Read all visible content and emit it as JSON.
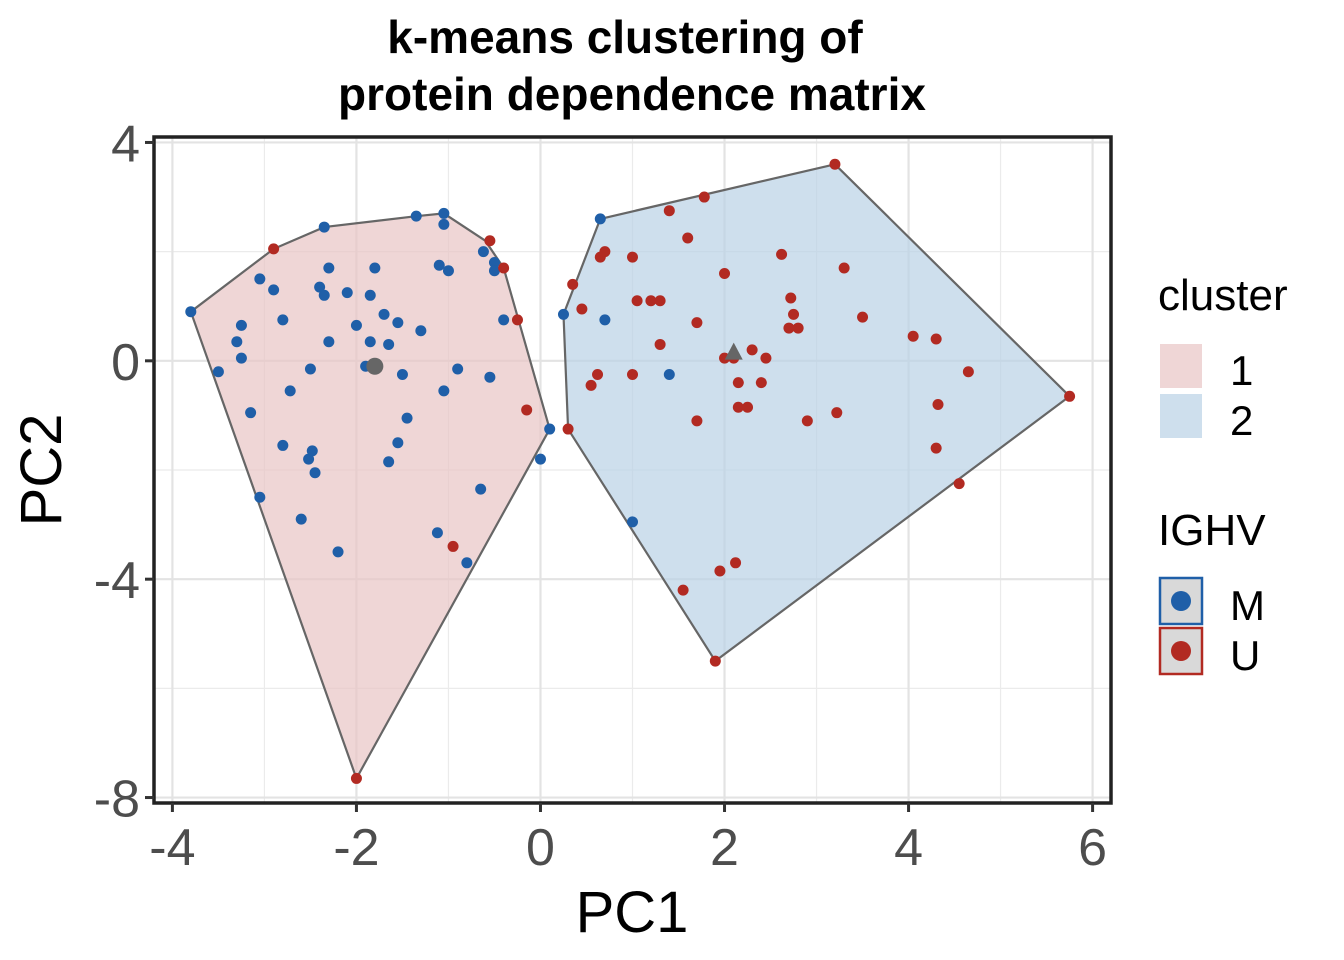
{
  "chart_data": {
    "type": "scatter",
    "title_lines": [
      "k-means clustering of",
      "protein dependence matrix"
    ],
    "xlabel": "PC1",
    "ylabel": "PC2",
    "xlim": [
      -4.2,
      6.2
    ],
    "ylim": [
      -8.1,
      4.1
    ],
    "xticks": [
      -4,
      -2,
      0,
      2,
      4,
      6
    ],
    "xtick_labels": [
      "-4",
      "-2",
      "0",
      "2",
      "4",
      "6"
    ],
    "yticks": [
      -8,
      -4,
      0,
      4
    ],
    "ytick_labels": [
      "-8",
      "-4",
      "0",
      "4"
    ],
    "grid": true,
    "colors": {
      "M": "#1f5fa8",
      "U": "#b22a22",
      "cluster1_fill": "#e8c4c4",
      "cluster2_fill": "#b9d2e6",
      "hull_stroke": "#666666",
      "centroid": "#666666"
    },
    "legend": {
      "cluster": {
        "title": "cluster",
        "items": [
          "1",
          "2"
        ]
      },
      "ighv": {
        "title": "IGHV",
        "items": [
          "M",
          "U"
        ]
      }
    },
    "hulls": [
      {
        "cluster": "1",
        "points": [
          [
            -3.8,
            0.9
          ],
          [
            -2.9,
            2.05
          ],
          [
            -2.35,
            2.45
          ],
          [
            -1.35,
            2.65
          ],
          [
            -1.05,
            2.7
          ],
          [
            -0.6,
            2.2
          ],
          [
            -0.4,
            1.7
          ],
          [
            0.1,
            -1.25
          ],
          [
            -2.0,
            -7.65
          ]
        ]
      },
      {
        "cluster": "2",
        "points": [
          [
            0.3,
            -1.25
          ],
          [
            0.25,
            0.85
          ],
          [
            0.65,
            2.6
          ],
          [
            3.2,
            3.6
          ],
          [
            5.75,
            -0.65
          ],
          [
            1.9,
            -5.5
          ]
        ]
      }
    ],
    "centroids": [
      {
        "cluster": "1",
        "x": -1.8,
        "y": -0.1,
        "shape": "circle"
      },
      {
        "cluster": "2",
        "x": 2.1,
        "y": 0.15,
        "shape": "triangle"
      }
    ],
    "series": [
      {
        "name": "M",
        "points": [
          [
            -3.8,
            0.9
          ],
          [
            -3.5,
            -0.2
          ],
          [
            -3.3,
            0.35
          ],
          [
            -3.25,
            0.65
          ],
          [
            -3.25,
            0.05
          ],
          [
            -3.15,
            -0.95
          ],
          [
            -3.05,
            1.5
          ],
          [
            -2.9,
            1.3
          ],
          [
            -2.8,
            0.75
          ],
          [
            -2.8,
            -1.55
          ],
          [
            -2.72,
            -0.55
          ],
          [
            -3.05,
            -2.5
          ],
          [
            -2.6,
            -2.9
          ],
          [
            -2.5,
            -0.15
          ],
          [
            -2.52,
            -1.8
          ],
          [
            -2.48,
            -1.65
          ],
          [
            -2.45,
            -2.05
          ],
          [
            -2.4,
            1.35
          ],
          [
            -2.35,
            2.45
          ],
          [
            -2.35,
            1.2
          ],
          [
            -2.3,
            1.7
          ],
          [
            -2.3,
            0.35
          ],
          [
            -2.2,
            -3.5
          ],
          [
            -2.1,
            1.25
          ],
          [
            -2.0,
            0.65
          ],
          [
            -1.85,
            1.2
          ],
          [
            -1.85,
            0.35
          ],
          [
            -1.9,
            -0.1
          ],
          [
            -1.8,
            1.7
          ],
          [
            -1.7,
            0.85
          ],
          [
            -1.65,
            0.3
          ],
          [
            -1.65,
            -1.85
          ],
          [
            -1.55,
            0.7
          ],
          [
            -1.55,
            -1.5
          ],
          [
            -1.5,
            -0.25
          ],
          [
            -1.45,
            -1.05
          ],
          [
            -1.3,
            0.55
          ],
          [
            -1.35,
            2.65
          ],
          [
            -1.1,
            1.75
          ],
          [
            -1.05,
            2.7
          ],
          [
            -1.05,
            2.5
          ],
          [
            -1.0,
            1.65
          ],
          [
            -1.05,
            -0.55
          ],
          [
            -0.9,
            -0.15
          ],
          [
            -1.12,
            -3.15
          ],
          [
            -0.8,
            -3.7
          ],
          [
            -0.65,
            -2.35
          ],
          [
            -0.62,
            2.0
          ],
          [
            -0.55,
            -0.3
          ],
          [
            -0.5,
            1.8
          ],
          [
            -0.5,
            1.65
          ],
          [
            0.1,
            -1.25
          ],
          [
            0.0,
            -1.8
          ],
          [
            -0.4,
            0.75
          ],
          [
            0.25,
            0.85
          ],
          [
            0.65,
            2.6
          ],
          [
            0.7,
            0.75
          ],
          [
            1.4,
            -0.25
          ],
          [
            1.0,
            -2.95
          ]
        ]
      },
      {
        "name": "U",
        "points": [
          [
            -2.9,
            2.05
          ],
          [
            -0.55,
            2.2
          ],
          [
            -0.4,
            1.7
          ],
          [
            -0.25,
            0.75
          ],
          [
            -0.15,
            -0.9
          ],
          [
            -0.95,
            -3.4
          ],
          [
            -2.0,
            -7.65
          ],
          [
            0.3,
            -1.25
          ],
          [
            0.35,
            1.4
          ],
          [
            0.45,
            0.95
          ],
          [
            0.55,
            -0.45
          ],
          [
            0.62,
            -0.25
          ],
          [
            0.65,
            1.9
          ],
          [
            0.7,
            2.0
          ],
          [
            1.0,
            1.9
          ],
          [
            1.05,
            1.1
          ],
          [
            1.0,
            -0.25
          ],
          [
            1.2,
            1.1
          ],
          [
            1.3,
            1.1
          ],
          [
            1.3,
            0.3
          ],
          [
            1.4,
            2.75
          ],
          [
            1.55,
            -4.2
          ],
          [
            1.6,
            2.25
          ],
          [
            1.7,
            0.7
          ],
          [
            1.7,
            -1.1
          ],
          [
            1.78,
            3.0
          ],
          [
            1.9,
            -5.5
          ],
          [
            1.95,
            -3.85
          ],
          [
            2.0,
            1.6
          ],
          [
            2.0,
            0.05
          ],
          [
            2.1,
            0.05
          ],
          [
            2.12,
            -3.7
          ],
          [
            2.15,
            -0.4
          ],
          [
            2.15,
            -0.85
          ],
          [
            2.25,
            -0.85
          ],
          [
            2.3,
            0.2
          ],
          [
            2.4,
            -0.4
          ],
          [
            2.45,
            0.05
          ],
          [
            2.62,
            1.95
          ],
          [
            2.7,
            0.6
          ],
          [
            2.72,
            1.15
          ],
          [
            2.75,
            0.85
          ],
          [
            2.8,
            0.6
          ],
          [
            2.9,
            -1.1
          ],
          [
            3.2,
            3.6
          ],
          [
            3.22,
            -0.95
          ],
          [
            3.3,
            1.7
          ],
          [
            3.5,
            0.8
          ],
          [
            4.05,
            0.45
          ],
          [
            4.3,
            0.4
          ],
          [
            4.32,
            -0.8
          ],
          [
            4.3,
            -1.6
          ],
          [
            4.55,
            -2.25
          ],
          [
            4.65,
            -0.2
          ],
          [
            5.75,
            -0.65
          ]
        ]
      }
    ]
  }
}
